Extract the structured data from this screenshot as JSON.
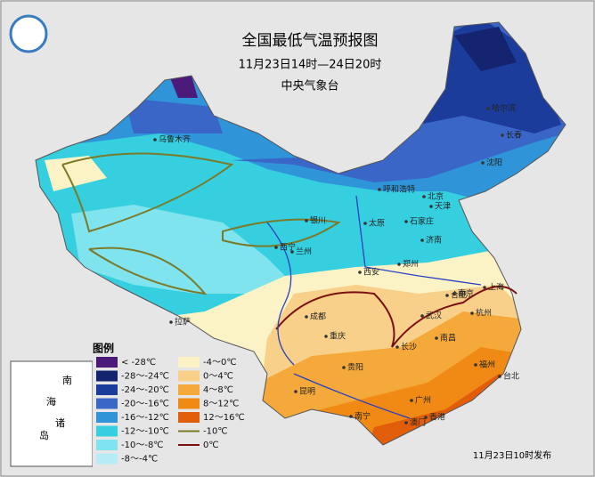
{
  "map": {
    "title": "全国最低气温预报图",
    "subtitle": "11月23日14时—24日20时",
    "issuer": "中央气象台",
    "footer": "11月23日10时发布",
    "inset_label": [
      "南",
      "海",
      "诸",
      "岛"
    ]
  },
  "legend": {
    "title": "图例",
    "items": [
      {
        "label": "< -28℃",
        "color": "#4b1a7a"
      },
      {
        "label": "-28～-24℃",
        "color": "#14246e"
      },
      {
        "label": "-24～-20℃",
        "color": "#1c3c9c"
      },
      {
        "label": "-20～-16℃",
        "color": "#3a66c8"
      },
      {
        "label": "-16～-12℃",
        "color": "#2f95d8"
      },
      {
        "label": "-12～-10℃",
        "color": "#35cfe0"
      },
      {
        "label": "-10～-8℃",
        "color": "#7fe4ee"
      },
      {
        "label": "-8～-4℃",
        "color": "#b5ecf5"
      },
      {
        "label": "-4～0℃",
        "color": "#fbf3c6"
      },
      {
        "label": "0～4℃",
        "color": "#f8d08a"
      },
      {
        "label": "4～8℃",
        "color": "#f5a93a"
      },
      {
        "label": "8～12℃",
        "color": "#f08a14"
      },
      {
        "label": "12～16℃",
        "color": "#e25d0a"
      },
      {
        "label": "-10℃",
        "color": "#7a7a2a",
        "line": true
      },
      {
        "label": "0℃",
        "color": "#7a1010",
        "line": true
      }
    ]
  },
  "cities": [
    "乌鲁木齐",
    "拉萨",
    "西宁",
    "兰州",
    "银川",
    "呼和浩特",
    "太原",
    "石家庄",
    "北京",
    "天津",
    "济南",
    "郑州",
    "西安",
    "成都",
    "重庆",
    "贵阳",
    "昆明",
    "南宁",
    "长沙",
    "武汉",
    "合肥",
    "南京",
    "上海",
    "杭州",
    "南昌",
    "福州",
    "台北",
    "广州",
    "香港",
    "澳门",
    "哈尔滨",
    "长春",
    "沈阳"
  ]
}
